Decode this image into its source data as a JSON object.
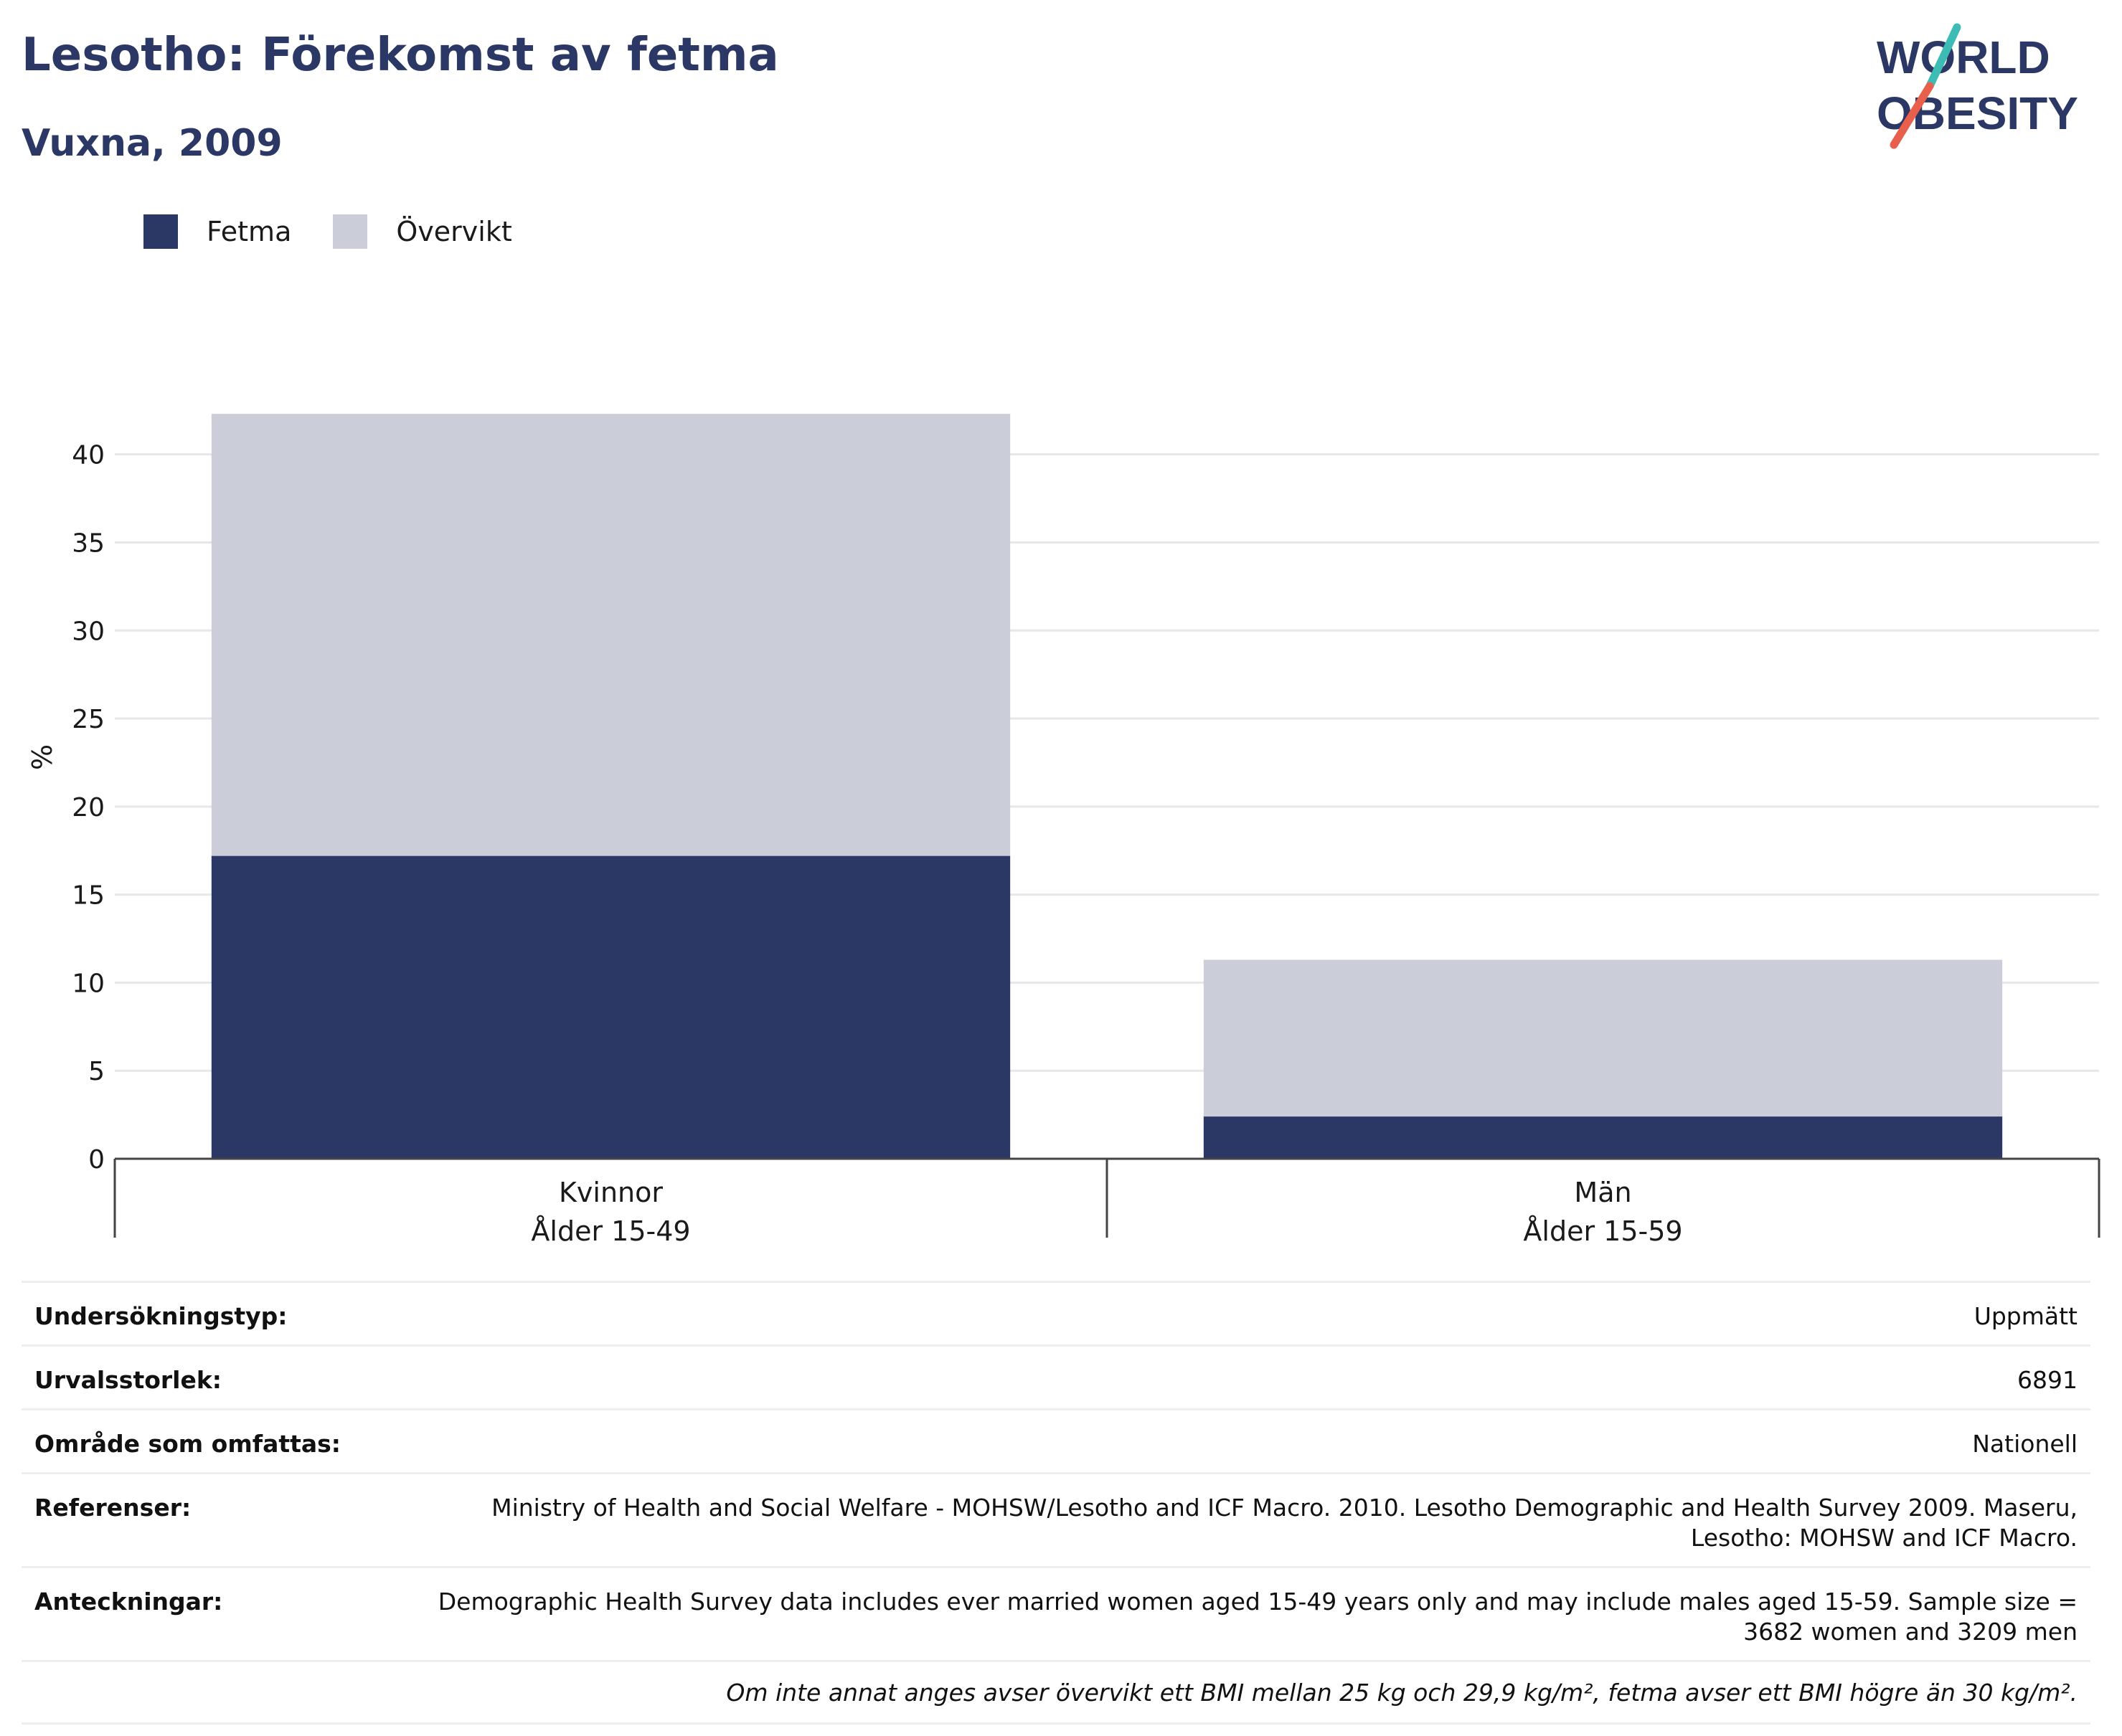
{
  "header": {
    "title": "Lesotho: Förekomst av fetma",
    "subtitle": "Vuxna, 2009"
  },
  "logo": {
    "text_line1": "WORLD",
    "text_line2": "OBESITY"
  },
  "colors": {
    "fetma": "#2b3764",
    "overvikt": "#cbcdd9",
    "title": "#2b3764",
    "logo_teal": "#3dbcb5",
    "logo_red": "#e8604c"
  },
  "chart_data": {
    "type": "bar",
    "stacked": true,
    "ylabel": "%",
    "ylim": [
      0,
      43
    ],
    "yticks": [
      0,
      5,
      10,
      15,
      20,
      25,
      30,
      35,
      40
    ],
    "grid": true,
    "legend_position": "top-left",
    "categories": [
      {
        "line1": "Kvinnor",
        "line2": "Ålder 15-49"
      },
      {
        "line1": "Män",
        "line2": "Ålder 15-59"
      }
    ],
    "series": [
      {
        "name": "Fetma",
        "color": "#2b3764",
        "values": [
          17.2,
          2.4
        ]
      },
      {
        "name": "Övervikt",
        "color": "#cbcdd9",
        "values": [
          25.1,
          8.9
        ]
      }
    ]
  },
  "info": {
    "survey_type_label": "Undersökningstyp:",
    "survey_type_value": "Uppmätt",
    "sample_size_label": "Urvalsstorlek:",
    "sample_size_value": "6891",
    "coverage_label": "Område som omfattas:",
    "coverage_value": "Nationell",
    "references_label": "Referenser:",
    "references_value": "Ministry of Health and Social Welfare - MOHSW/Lesotho and ICF Macro. 2010. Lesotho Demographic and Health Survey 2009. Maseru, Lesotho: MOHSW and ICF Macro.",
    "notes_label": "Anteckningar:",
    "notes_value": "Demographic Health Survey data includes ever married women aged 15-49 years only and may include males aged 15-59. Sample size = 3682 women and 3209 men",
    "footnote": "Om inte annat anges avser övervikt ett BMI mellan 25 kg och 29,9 kg/m², fetma avser ett BMI högre än 30 kg/m²."
  }
}
